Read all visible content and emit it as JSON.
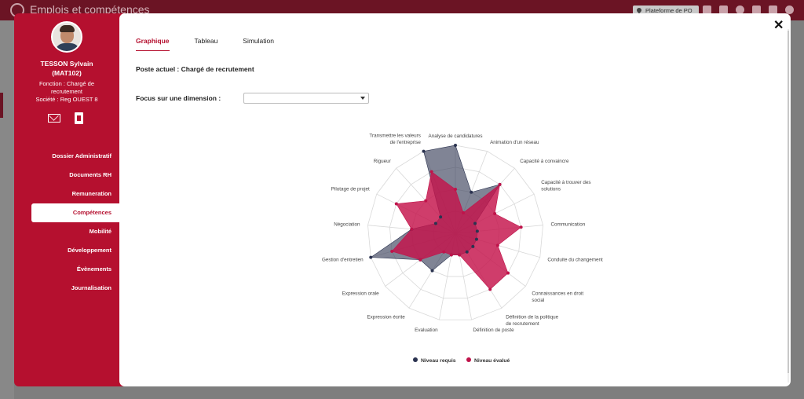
{
  "app": {
    "title": "Emplois et compétences",
    "platform_label": "Plateforme de PO"
  },
  "profile": {
    "name": "TESSON Sylvain",
    "code": "(MAT102)",
    "function_line1": "Fonction : Chargé de",
    "function_line2": "recrutement",
    "company": "Société : Reg OUEST 8"
  },
  "nav": [
    {
      "label": "Dossier Administratif",
      "active": false
    },
    {
      "label": "Documents RH",
      "active": false
    },
    {
      "label": "Remuneration",
      "active": false
    },
    {
      "label": "Compétences",
      "active": true
    },
    {
      "label": "Mobilité",
      "active": false
    },
    {
      "label": "Développement",
      "active": false
    },
    {
      "label": "Évènements",
      "active": false
    },
    {
      "label": "Journalisation",
      "active": false
    }
  ],
  "tabs": [
    "Graphique",
    "Tableau",
    "Simulation"
  ],
  "current_post": "Poste actuel : Chargé de recrutement",
  "focus": {
    "label": "Focus sur une dimension :",
    "selected": ""
  },
  "colors": {
    "accent": "#b5102f",
    "required": "#2b3350",
    "evaluated": "#c0134a"
  },
  "chart_data": {
    "type": "radar",
    "axes": [
      "Analyse de candidatures",
      "Animation d'un réseau",
      "Capacité à convaincre",
      "Capacité à trouver des solutions",
      "Communication",
      "Conduite du changement",
      "Connaissances en droit social",
      "Définition de la politique de recrutement",
      "Définition de poste",
      "Evaluation",
      "Expression écrite",
      "Expression orale",
      "Gestion d'entretien",
      "Négociation",
      "Pilotage de projet",
      "Rigueur",
      "Transmettre les valeurs de l'entreprise"
    ],
    "axis_labels_wrapped": [
      [
        "Analyse de candidatures"
      ],
      [
        "Animation d'un réseau"
      ],
      [
        "Capacité à convaincre"
      ],
      [
        "Capacité à trouver des",
        "solutions"
      ],
      [
        "Communication"
      ],
      [
        "Conduite du changement"
      ],
      [
        "Connaissances en droit",
        "social"
      ],
      [
        "Définition de la politique",
        "de recrutement"
      ],
      [
        "Définition de poste"
      ],
      [
        "Evaluation"
      ],
      [
        "Expression écrite"
      ],
      [
        "Expression orale"
      ],
      [
        "Gestion d'entretien"
      ],
      [
        "Négociation"
      ],
      [
        "Pilotage de projet"
      ],
      [
        "Rigueur"
      ],
      [
        "Transmettre les valeurs",
        "de l'entreprise"
      ]
    ],
    "range": [
      0,
      4
    ],
    "series": [
      {
        "name": "Niveau requis",
        "values": [
          4,
          2,
          3,
          1,
          1,
          1,
          1,
          1,
          1,
          1,
          2,
          2,
          4,
          2,
          1,
          1,
          4
        ]
      },
      {
        "name": "Niveau évalué",
        "values": [
          2,
          1,
          3,
          2,
          3,
          2,
          3,
          3,
          1,
          1,
          1,
          2,
          3,
          2,
          3,
          2,
          3
        ]
      }
    ]
  }
}
